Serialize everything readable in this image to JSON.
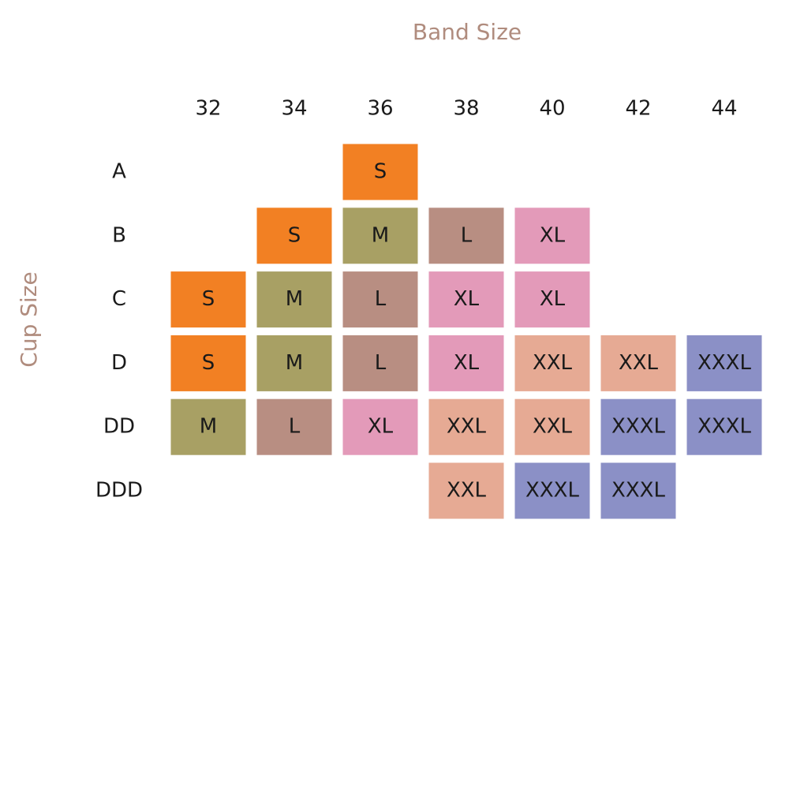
{
  "header": {
    "title": "Band Size",
    "row_axis": "Cup Size"
  },
  "table": {
    "columns": [
      "32",
      "34",
      "36",
      "38",
      "40",
      "42",
      "44"
    ],
    "rows": [
      {
        "label": "A",
        "cells": [
          null,
          null,
          "S",
          null,
          null,
          null,
          null
        ]
      },
      {
        "label": "B",
        "cells": [
          null,
          "S",
          "M",
          "L",
          "XL",
          null,
          null
        ]
      },
      {
        "label": "C",
        "cells": [
          "S",
          "M",
          "L",
          "XL",
          "XL",
          null,
          null
        ]
      },
      {
        "label": "D",
        "cells": [
          "S",
          "M",
          "L",
          "XL",
          "XXL",
          "XXL",
          "XXXL"
        ]
      },
      {
        "label": "DD",
        "cells": [
          "M",
          "L",
          "XL",
          "XXL",
          "XXL",
          "XXXL",
          "XXXL"
        ]
      },
      {
        "label": "DDD",
        "cells": [
          null,
          null,
          null,
          "XXL",
          "XXXL",
          "XXXL",
          null
        ]
      }
    ],
    "colors": {
      "S": "#f28023",
      "M": "#a8a064",
      "L": "#b88e82",
      "XL": "#e39ab9",
      "XXL": "#e6aa94",
      "XXXL": "#8b90c6"
    }
  }
}
